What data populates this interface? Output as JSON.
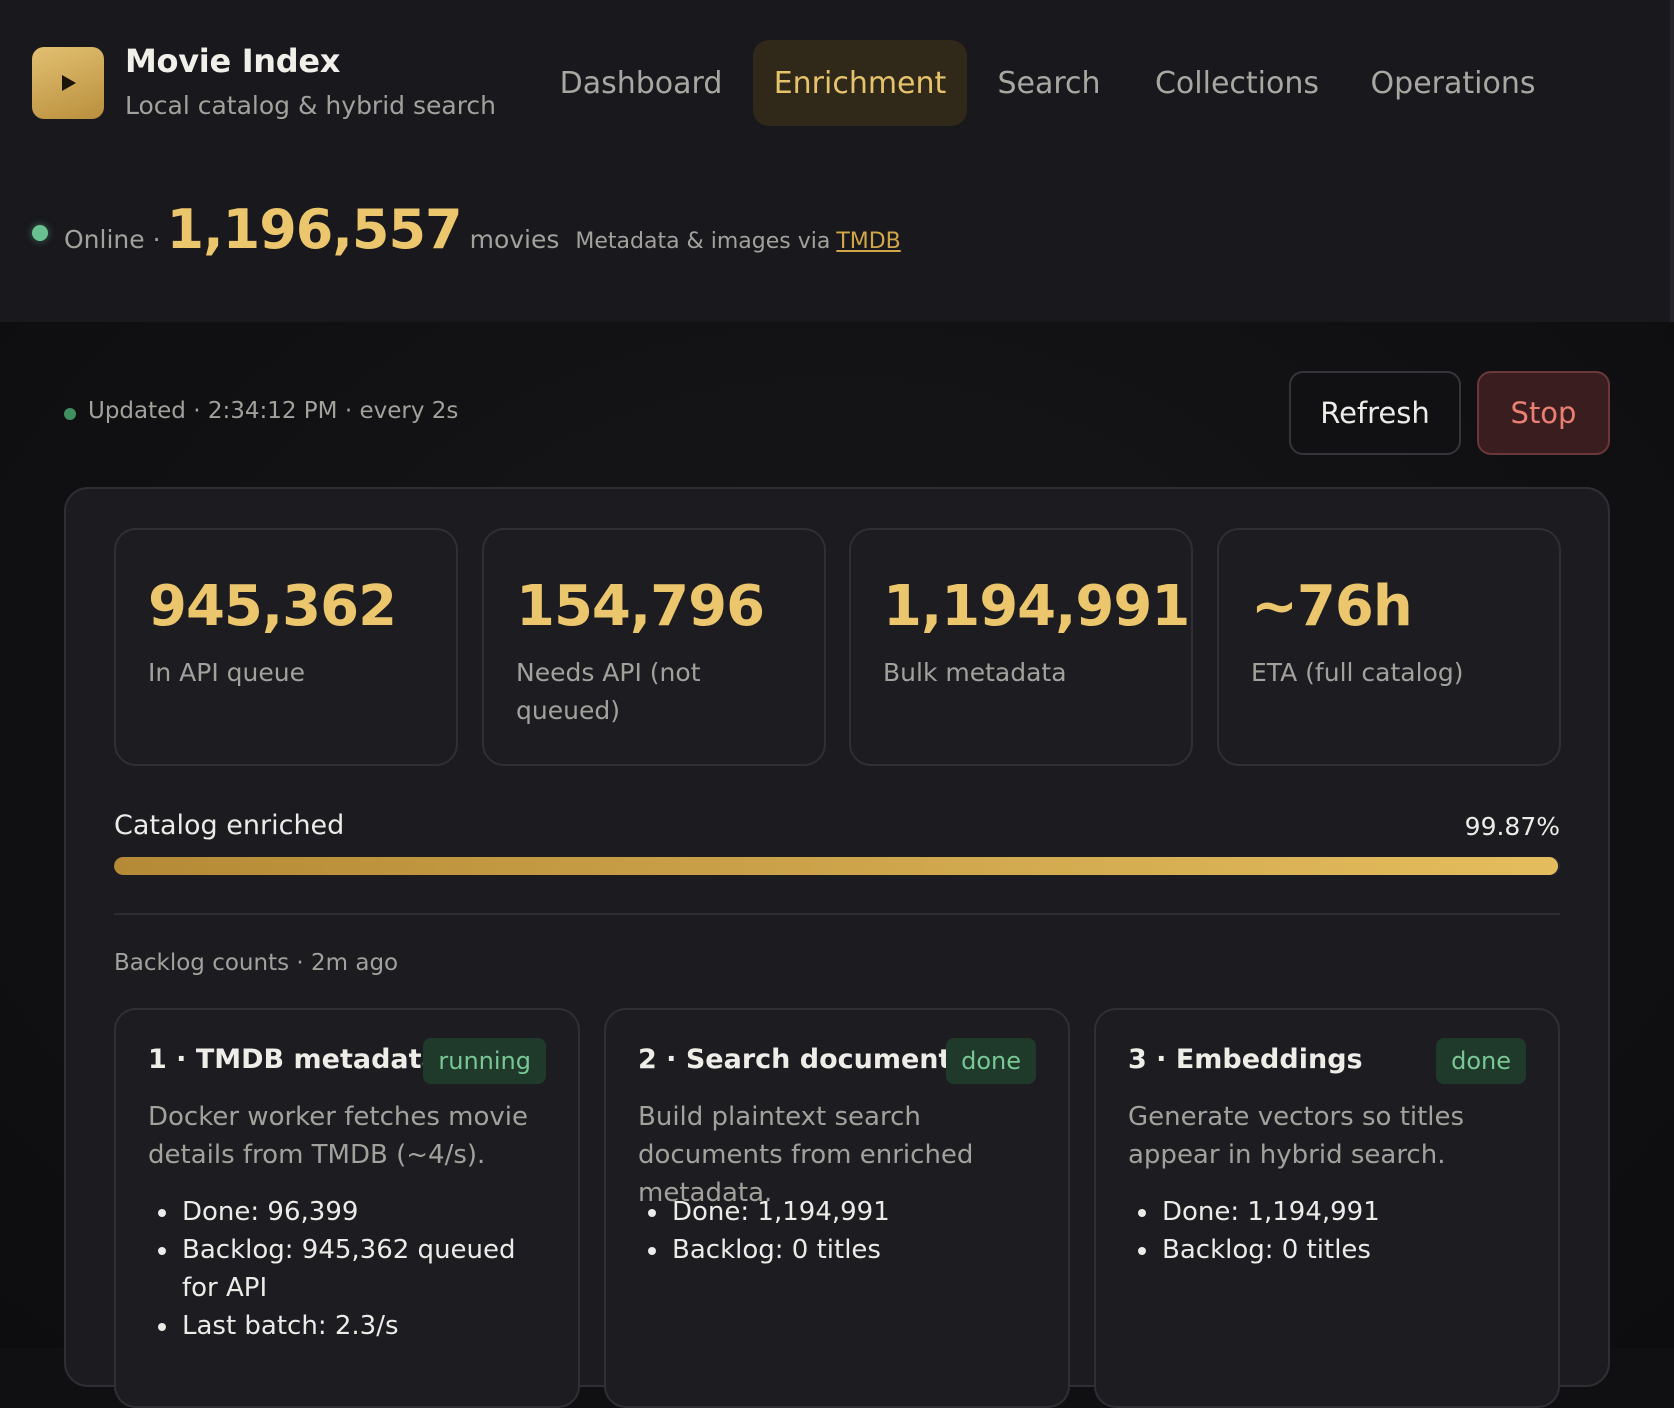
{
  "app": {
    "title": "Movie Index",
    "subtitle": "Local catalog & hybrid search",
    "logo_icon": "play-icon",
    "accent_color": "#ecc66c"
  },
  "nav": {
    "tabs": [
      {
        "label": "Dashboard",
        "active": false
      },
      {
        "label": "Enrichment",
        "active": true
      },
      {
        "label": "Search",
        "active": false
      },
      {
        "label": "Collections",
        "active": false
      },
      {
        "label": "Operations",
        "active": false
      }
    ]
  },
  "status": {
    "state_label": "Online ·",
    "movie_count": "1,196,557",
    "count_unit": "movies",
    "attribution": "Metadata & images via",
    "attribution_link": "TMDB",
    "indicator_color": "#69c090"
  },
  "toolbar": {
    "updated_text": "Updated · 2:34:12 PM · every 2s",
    "refresh_label": "Refresh",
    "stop_label": "Stop"
  },
  "stats": [
    {
      "value": "945,362",
      "label": "In API queue"
    },
    {
      "value": "154,796",
      "label": "Needs API (not queued)"
    },
    {
      "value": "1,194,991",
      "label": "Bulk metadata"
    },
    {
      "value": "~76h",
      "label": "ETA (full catalog)"
    }
  ],
  "progress": {
    "label": "Catalog enriched",
    "value_text": "99.87%",
    "fraction": 0.9987
  },
  "backlog_note": "Backlog counts · 2m ago",
  "steps": [
    {
      "title": "1 · TMDB metadata",
      "badge": "running",
      "description": "Docker worker fetches movie details from TMDB (~4/s).",
      "items": [
        "Done: 96,399",
        "Backlog: 945,362 queued for API",
        "Last batch: 2.3/s"
      ]
    },
    {
      "title": "2 · Search documents",
      "badge": "done",
      "description": "Build plaintext search documents from enriched metadata.",
      "items": [
        "Done: 1,194,991",
        "Backlog: 0 titles"
      ]
    },
    {
      "title": "3 · Embeddings",
      "badge": "done",
      "description": "Generate vectors so titles appear in hybrid search.",
      "items": [
        "Done: 1,194,991",
        "Backlog: 0 titles"
      ]
    }
  ]
}
